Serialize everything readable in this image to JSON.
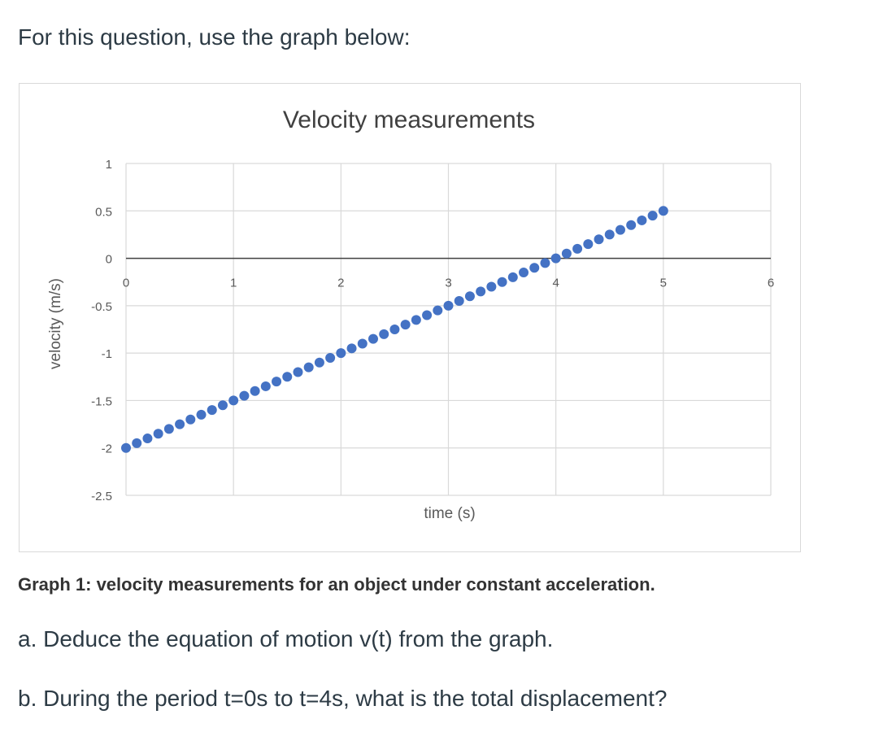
{
  "intro_text": "For this question, use the graph below:",
  "caption": "Graph 1: velocity measurements for an object under constant acceleration.",
  "questions": {
    "a": "a. Deduce the equation of motion v(t) from the graph.",
    "b": "b. During the period t=0s to t=4s, what is the total displacement?"
  },
  "chart_data": {
    "type": "scatter",
    "title": "Velocity measurements",
    "xlabel": "time (s)",
    "ylabel": "velocity (m/s)",
    "xlim": [
      0,
      6
    ],
    "ylim": [
      -2.5,
      1
    ],
    "x_ticks": [
      "0",
      "1",
      "2",
      "3",
      "4",
      "5",
      "6"
    ],
    "y_ticks": [
      "1",
      "0.5",
      "0",
      "-0.5",
      "-1",
      "-1.5",
      "-2",
      "-2.5"
    ],
    "grid": true,
    "legend": "none",
    "marker_color": "#4472c4",
    "series": [
      {
        "x": [
          0,
          0.1,
          0.2,
          0.3,
          0.4,
          0.5,
          0.6,
          0.7,
          0.8,
          0.9,
          1.0,
          1.1,
          1.2,
          1.3,
          1.4,
          1.5,
          1.6,
          1.7,
          1.8,
          1.9,
          2.0,
          2.1,
          2.2,
          2.3,
          2.4,
          2.5,
          2.6,
          2.7,
          2.8,
          2.9,
          3.0,
          3.1,
          3.2,
          3.3,
          3.4,
          3.5,
          3.6,
          3.7,
          3.8,
          3.9,
          4.0,
          4.1,
          4.2,
          4.3,
          4.4,
          4.5,
          4.6,
          4.7,
          4.8,
          4.9,
          5.0
        ],
        "y": [
          -2.0,
          -1.95,
          -1.9,
          -1.85,
          -1.8,
          -1.75,
          -1.7,
          -1.65,
          -1.6,
          -1.55,
          -1.5,
          -1.45,
          -1.4,
          -1.35,
          -1.3,
          -1.25,
          -1.2,
          -1.15,
          -1.1,
          -1.05,
          -1.0,
          -0.95,
          -0.9,
          -0.85,
          -0.8,
          -0.75,
          -0.7,
          -0.65,
          -0.6,
          -0.55,
          -0.5,
          -0.45,
          -0.4,
          -0.35,
          -0.3,
          -0.25,
          -0.2,
          -0.15,
          -0.1,
          -0.05,
          0.0,
          0.05,
          0.1,
          0.15,
          0.2,
          0.25,
          0.3,
          0.35,
          0.4,
          0.45,
          0.5
        ]
      }
    ]
  }
}
